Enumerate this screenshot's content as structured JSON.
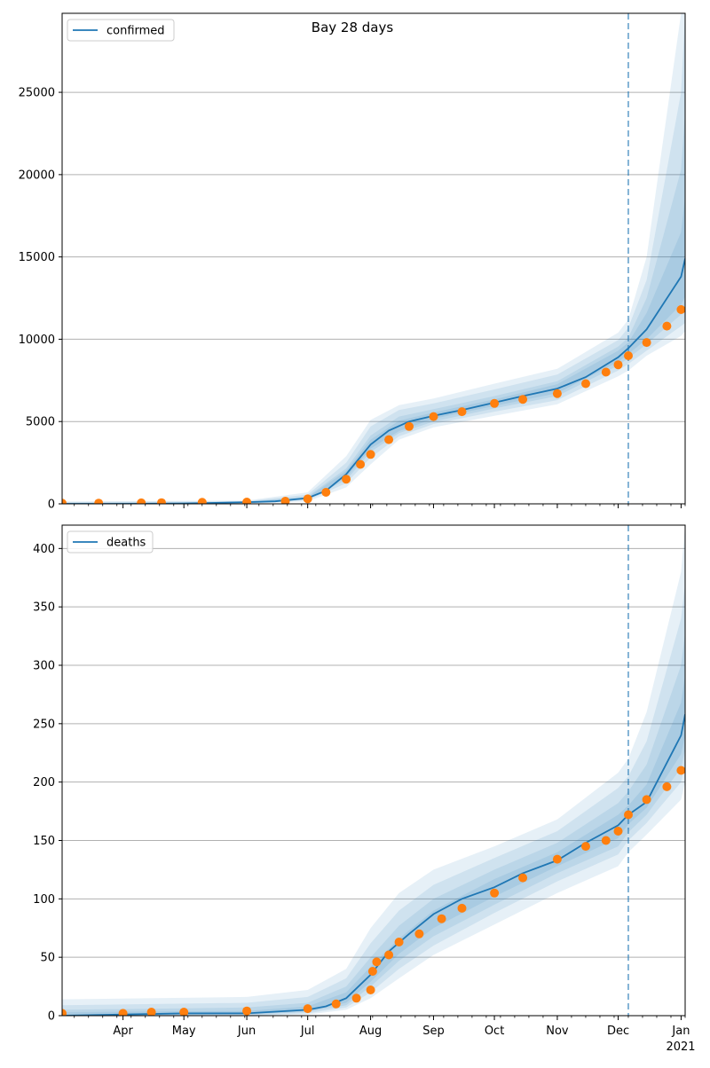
{
  "figure_title": "Bay 28 days",
  "x_axis": {
    "ticks": [
      {
        "date": "2020-04-01",
        "label": "Apr"
      },
      {
        "date": "2020-05-01",
        "label": "May"
      },
      {
        "date": "2020-06-01",
        "label": "Jun"
      },
      {
        "date": "2020-07-01",
        "label": "Jul"
      },
      {
        "date": "2020-08-01",
        "label": "Aug"
      },
      {
        "date": "2020-09-01",
        "label": "Sep"
      },
      {
        "date": "2020-10-01",
        "label": "Oct"
      },
      {
        "date": "2020-11-01",
        "label": "Nov"
      },
      {
        "date": "2020-12-01",
        "label": "Dec"
      },
      {
        "date": "2021-01-01",
        "label": "Jan"
      }
    ],
    "year_label": "2021",
    "range": [
      "2020-03-02",
      "2021-01-03"
    ]
  },
  "colors": {
    "model": "#1f77b4",
    "observed": "#ff7f0e",
    "band": "#1f77b4",
    "grid": "#b0b0b0",
    "forecast_line": "#1f77b4"
  },
  "chart_data": [
    {
      "type": "line",
      "name": "confirmed",
      "legend": {
        "label": "confirmed",
        "placement": "upper-left"
      },
      "ylim": [
        0,
        29800
      ],
      "yticks": [
        0,
        5000,
        10000,
        15000,
        20000,
        25000
      ],
      "grid": "y",
      "forecast_start": "2020-12-06",
      "model": {
        "x": [
          "2020-03-02",
          "2020-04-01",
          "2020-05-01",
          "2020-06-01",
          "2020-06-15",
          "2020-07-01",
          "2020-07-10",
          "2020-07-20",
          "2020-08-01",
          "2020-08-10",
          "2020-08-20",
          "2020-09-01",
          "2020-09-15",
          "2020-10-01",
          "2020-10-15",
          "2020-11-01",
          "2020-11-15",
          "2020-12-01",
          "2020-12-06",
          "2020-12-15",
          "2021-01-01",
          "2021-01-03"
        ],
        "y": [
          0,
          0,
          20,
          100,
          150,
          350,
          800,
          1800,
          3600,
          4450,
          5000,
          5350,
          5700,
          6150,
          6550,
          7000,
          7700,
          8900,
          9450,
          10600,
          13800,
          14900
        ]
      },
      "bands": [
        {
          "x": [
            "2020-03-02",
            "2020-06-01",
            "2020-07-01",
            "2020-07-20",
            "2020-08-01",
            "2020-08-15",
            "2020-09-01",
            "2020-10-01",
            "2020-11-01",
            "2020-12-01",
            "2020-12-06",
            "2020-12-15",
            "2021-01-01",
            "2021-01-03"
          ],
          "lower": [
            0,
            0,
            150,
            1000,
            2400,
            3900,
            4650,
            5350,
            6050,
            7750,
            8100,
            9000,
            10200,
            10500
          ],
          "upper": [
            150,
            200,
            700,
            2900,
            5100,
            6000,
            6400,
            7300,
            8200,
            10400,
            11200,
            15000,
            29800,
            29800
          ]
        },
        {
          "x": [
            "2020-03-02",
            "2020-06-01",
            "2020-07-01",
            "2020-07-20",
            "2020-08-01",
            "2020-08-15",
            "2020-09-01",
            "2020-10-01",
            "2020-11-01",
            "2020-12-01",
            "2020-12-06",
            "2020-12-15",
            "2021-01-01",
            "2021-01-03"
          ],
          "lower": [
            0,
            20,
            220,
            1250,
            2800,
            4100,
            4850,
            5600,
            6300,
            8100,
            8500,
            9300,
            10800,
            11000
          ],
          "upper": [
            100,
            160,
            560,
            2500,
            4700,
            5700,
            6100,
            6950,
            7850,
            9950,
            10700,
            13600,
            25000,
            29800
          ]
        },
        {
          "x": [
            "2020-03-02",
            "2020-06-01",
            "2020-07-01",
            "2020-07-20",
            "2020-08-01",
            "2020-08-15",
            "2020-09-01",
            "2020-10-01",
            "2020-11-01",
            "2020-12-01",
            "2020-12-06",
            "2020-12-15",
            "2021-01-01",
            "2021-01-03"
          ],
          "lower": [
            0,
            40,
            280,
            1450,
            3150,
            4300,
            5000,
            5800,
            6550,
            8400,
            8850,
            9700,
            11500,
            11900
          ],
          "upper": [
            60,
            130,
            450,
            2150,
            4150,
            5300,
            5750,
            6550,
            7450,
            9550,
            10100,
            12500,
            20300,
            23800
          ]
        },
        {
          "x": [
            "2020-03-02",
            "2020-06-01",
            "2020-07-01",
            "2020-07-20",
            "2020-08-01",
            "2020-08-15",
            "2020-09-01",
            "2020-10-01",
            "2020-11-01",
            "2020-12-01",
            "2020-12-06",
            "2020-12-15",
            "2021-01-01",
            "2021-01-03"
          ],
          "lower": [
            0,
            60,
            310,
            1600,
            3350,
            4420,
            5170,
            5950,
            6720,
            8630,
            9100,
            10000,
            12100,
            12600
          ],
          "upper": [
            40,
            110,
            390,
            2000,
            3900,
            5050,
            5550,
            6350,
            7270,
            9300,
            9800,
            11600,
            16500,
            18700
          ]
        }
      ],
      "observed": {
        "x": [
          "2020-03-02",
          "2020-03-20",
          "2020-04-10",
          "2020-04-20",
          "2020-05-10",
          "2020-06-01",
          "2020-06-20",
          "2020-07-01",
          "2020-07-10",
          "2020-07-20",
          "2020-07-27",
          "2020-08-01",
          "2020-08-10",
          "2020-08-20",
          "2020-09-01",
          "2020-09-15",
          "2020-10-01",
          "2020-10-15",
          "2020-11-01",
          "2020-11-15",
          "2020-11-25",
          "2020-12-01",
          "2020-12-06",
          "2020-12-15",
          "2020-12-25",
          "2021-01-01"
        ],
        "y": [
          40,
          45,
          60,
          70,
          90,
          110,
          160,
          300,
          700,
          1500,
          2400,
          3000,
          3900,
          4700,
          5300,
          5600,
          6100,
          6350,
          6700,
          7300,
          8000,
          8450,
          9000,
          9800,
          10800,
          11800
        ]
      }
    },
    {
      "type": "line",
      "name": "deaths",
      "legend": {
        "label": "deaths",
        "placement": "upper-left"
      },
      "ylim": [
        0,
        420
      ],
      "yticks": [
        0,
        50,
        100,
        150,
        200,
        250,
        300,
        350,
        400
      ],
      "grid": "y",
      "forecast_start": "2020-12-06",
      "model": {
        "x": [
          "2020-03-02",
          "2020-04-01",
          "2020-05-01",
          "2020-06-01",
          "2020-07-01",
          "2020-07-10",
          "2020-07-20",
          "2020-08-01",
          "2020-08-10",
          "2020-08-20",
          "2020-09-01",
          "2020-09-15",
          "2020-10-01",
          "2020-10-15",
          "2020-11-01",
          "2020-11-15",
          "2020-12-01",
          "2020-12-06",
          "2020-12-15",
          "2021-01-01",
          "2021-01-03"
        ],
        "y": [
          0,
          1,
          2,
          2,
          5,
          8,
          15,
          35,
          55,
          70,
          87,
          100,
          110,
          122,
          133,
          148,
          163,
          172,
          183,
          240,
          258
        ]
      },
      "bands": [
        {
          "x": [
            "2020-03-02",
            "2020-06-01",
            "2020-07-01",
            "2020-07-20",
            "2020-08-01",
            "2020-08-15",
            "2020-09-01",
            "2020-10-01",
            "2020-11-01",
            "2020-12-01",
            "2020-12-06",
            "2020-12-15",
            "2021-01-01",
            "2021-01-03"
          ],
          "lower": [
            0,
            0,
            1,
            5,
            15,
            32,
            52,
            78,
            105,
            128,
            140,
            155,
            185,
            200
          ],
          "upper": [
            14,
            16,
            22,
            40,
            75,
            105,
            125,
            145,
            168,
            208,
            220,
            260,
            380,
            420
          ]
        },
        {
          "x": [
            "2020-03-02",
            "2020-06-01",
            "2020-07-01",
            "2020-07-20",
            "2020-08-01",
            "2020-08-15",
            "2020-09-01",
            "2020-10-01",
            "2020-11-01",
            "2020-12-01",
            "2020-12-06",
            "2020-12-15",
            "2021-01-01",
            "2021-01-03"
          ],
          "lower": [
            0,
            0,
            2,
            7,
            20,
            40,
            60,
            88,
            115,
            138,
            150,
            165,
            200,
            215
          ],
          "upper": [
            9,
            11,
            16,
            32,
            62,
            90,
            112,
            135,
            158,
            195,
            205,
            235,
            340,
            370
          ]
        },
        {
          "x": [
            "2020-03-02",
            "2020-06-01",
            "2020-07-01",
            "2020-07-20",
            "2020-08-01",
            "2020-08-15",
            "2020-09-01",
            "2020-10-01",
            "2020-11-01",
            "2020-12-01",
            "2020-12-06",
            "2020-12-15",
            "2021-01-01",
            "2021-01-03"
          ],
          "lower": [
            0,
            1,
            3,
            9,
            25,
            47,
            68,
            95,
            122,
            145,
            157,
            172,
            212,
            228
          ],
          "upper": [
            5,
            7,
            11,
            25,
            50,
            77,
            100,
            125,
            148,
            182,
            192,
            215,
            300,
            328
          ]
        },
        {
          "x": [
            "2020-03-02",
            "2020-06-01",
            "2020-07-01",
            "2020-07-20",
            "2020-08-01",
            "2020-08-15",
            "2020-09-01",
            "2020-10-01",
            "2020-11-01",
            "2020-12-01",
            "2020-12-06",
            "2020-12-15",
            "2021-01-01",
            "2021-01-03"
          ],
          "lower": [
            0,
            1,
            4,
            11,
            29,
            53,
            75,
            102,
            128,
            152,
            164,
            178,
            224,
            240
          ],
          "upper": [
            3,
            4,
            8,
            20,
            42,
            66,
            90,
            117,
            140,
            172,
            180,
            198,
            268,
            292
          ]
        }
      ],
      "observed": {
        "x": [
          "2020-03-02",
          "2020-04-01",
          "2020-04-15",
          "2020-05-01",
          "2020-06-01",
          "2020-07-01",
          "2020-07-15",
          "2020-07-25",
          "2020-08-01",
          "2020-08-02",
          "2020-08-04",
          "2020-08-10",
          "2020-08-15",
          "2020-08-25",
          "2020-09-05",
          "2020-09-15",
          "2020-10-01",
          "2020-10-15",
          "2020-11-01",
          "2020-11-15",
          "2020-11-25",
          "2020-12-01",
          "2020-12-06",
          "2020-12-15",
          "2020-12-25",
          "2021-01-01"
        ],
        "y": [
          2,
          2,
          3,
          3,
          4,
          6,
          10,
          15,
          22,
          38,
          46,
          52,
          63,
          70,
          83,
          92,
          105,
          118,
          134,
          145,
          150,
          158,
          172,
          185,
          196,
          210
        ]
      }
    }
  ]
}
